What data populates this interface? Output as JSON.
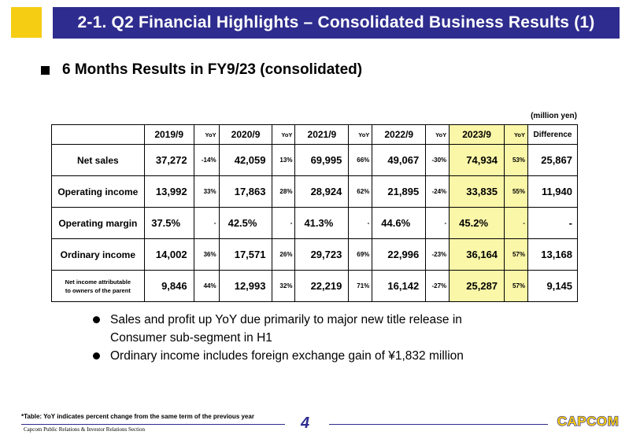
{
  "header": {
    "title": "2-1. Q2 Financial Highlights – Consolidated Business Results (1)"
  },
  "section": {
    "heading": "6 Months Results in FY9/23 (consolidated)"
  },
  "table": {
    "unit": "(million yen)",
    "columns": [
      "2019/9",
      "2020/9",
      "2021/9",
      "2022/9",
      "2023/9"
    ],
    "yoy_label": "YoY",
    "difference_label": "Difference",
    "rows": [
      {
        "label": "Net sales",
        "values": [
          "37,272",
          "42,059",
          "69,995",
          "49,067",
          "74,934"
        ],
        "yoy": [
          "-14%",
          "13%",
          "66%",
          "-30%",
          "53%"
        ],
        "difference": "25,867"
      },
      {
        "label": "Operating income",
        "values": [
          "13,992",
          "17,863",
          "28,924",
          "21,895",
          "33,835"
        ],
        "yoy": [
          "33%",
          "28%",
          "62%",
          "-24%",
          "55%"
        ],
        "difference": "11,940"
      },
      {
        "label": "Operating margin",
        "values": [
          "37.5%",
          "42.5%",
          "41.3%",
          "44.6%",
          "45.2%"
        ],
        "yoy": [
          "-",
          "-",
          "-",
          "-",
          "-"
        ],
        "difference": "-"
      },
      {
        "label": "Ordinary income",
        "values": [
          "14,002",
          "17,571",
          "29,723",
          "22,996",
          "36,164"
        ],
        "yoy": [
          "36%",
          "26%",
          "69%",
          "-23%",
          "57%"
        ],
        "difference": "13,168"
      },
      {
        "label_line1": "Net income attributable",
        "label_line2": "to owners of the parent",
        "values": [
          "9,846",
          "12,993",
          "22,219",
          "16,142",
          "25,287"
        ],
        "yoy": [
          "44%",
          "32%",
          "71%",
          "-27%",
          "57%"
        ],
        "difference": "9,145"
      }
    ]
  },
  "bullets": {
    "b1_line1": "Sales and profit up YoY due primarily to major new title release in",
    "b1_line2": "Consumer sub-segment in H1",
    "b2": "Ordinary income includes foreign exchange gain of ¥1,832 million"
  },
  "footer": {
    "note": "*Table: YoY indicates percent change from the same term of the previous year",
    "section_text": "Capcom Public Relations & Investor Relations Section",
    "page": "4",
    "logo_text": "CAPCOM"
  },
  "colors": {
    "title_bg": "#2e2c8e",
    "accent_square": "#f5cd13",
    "highlight": "#fbf7a8",
    "logo_fill": "#f5cd13",
    "logo_stroke": "#2e2c8e"
  }
}
